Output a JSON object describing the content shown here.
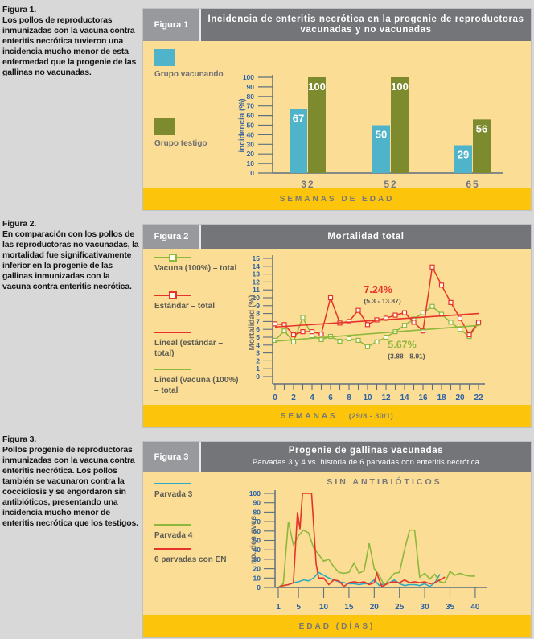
{
  "page": {
    "background": "#d8d8d8",
    "panel_color": "#fbdd95",
    "header_color": "#747579",
    "tab_color": "#98999d",
    "strip_color": "#fcc40a"
  },
  "figures": [
    {
      "sidebar_title": "Figura 1.",
      "sidebar_text": "Los pollos de reproductoras inmunizadas con la vacuna contra enteritis necrótica tuvieron una incidencia mucho menor de esta enfermedad que la progenie de las gallinas no vacunadas.",
      "tab": "Figura 1",
      "title": "Incidencia de enteritis necrótica en la progenie de reproductoras vacunadas y no vacunadas",
      "subtitle": "",
      "footer": "SEMANAS DE EDAD",
      "footer_note": "",
      "legend": [
        {
          "label": "Grupo vacunando",
          "color": "#4fb3c9"
        },
        {
          "label": "Grupo testigo",
          "color": "#7d8a2e"
        }
      ]
    },
    {
      "sidebar_title": "Figura 2.",
      "sidebar_text": "En comparación con los pollos de las reproductoras no vacunadas, la mortalidad fue significativamente inferior en la progenie de las gallinas inmunizadas con la vacuna contra enteritis necrótica.",
      "tab": "Figura 2",
      "title": "Mortalidad total",
      "subtitle": "",
      "footer": "SEMANAS",
      "footer_note": "(29/8 - 30/1)",
      "legend": [
        {
          "label": "Vacuna (100%) – total",
          "color": "#8cb83b",
          "marker": "square"
        },
        {
          "label": "Estándar – total",
          "color": "#e63329",
          "marker": "square"
        },
        {
          "label": "Lineal (estándar – total)",
          "color": "#e63329",
          "marker": "none"
        },
        {
          "label": "Lineal (vacuna (100%) – total",
          "color": "#8cb83b",
          "marker": "none"
        }
      ]
    },
    {
      "sidebar_title": "Figura 3.",
      "sidebar_text": "Pollos progenie de reproductoras inmunizadas con la vacuna contra enteritis necrótica. Los pollos también se vacunaron contra la coccidiosis y se engordaron sin antibióticos, presentando una incidencia mucho menor de enteritis necrótica que los testigos.",
      "tab": "Figura 3",
      "title": "Progenie de gallinas vacunadas",
      "subtitle": "Parvadas 3 y 4 vs. historia de 6 parvadas con enteritis necrótica",
      "footer": "EDAD (DÍAS)",
      "footer_note": "",
      "legend": [
        {
          "label": "Parvada 3",
          "color": "#2da9c6"
        },
        {
          "label": "Parvada 4",
          "color": "#8cb83b"
        },
        {
          "label": "6 parvadas con EN",
          "color": "#e63329"
        }
      ]
    }
  ],
  "chart_data": [
    {
      "type": "bar",
      "title": "Incidencia de enteritis necrótica en la progenie de reproductoras vacunadas y no vacunadas",
      "categories": [
        "32",
        "52",
        "65"
      ],
      "series": [
        {
          "name": "Grupo vacunando",
          "color": "#4fb3c9",
          "values": [
            67,
            50,
            29
          ]
        },
        {
          "name": "Grupo testigo",
          "color": "#7d8a2e",
          "values": [
            100,
            100,
            56
          ]
        }
      ],
      "ylabel": "incidencia (%)",
      "xlabel": "SEMANAS DE EDAD",
      "ylim": [
        0,
        100
      ],
      "ytick_step": 10,
      "grid": false,
      "legend_position": "left",
      "value_labels": true
    },
    {
      "type": "line",
      "title": "Mortalidad total",
      "x": [
        0,
        1,
        2,
        3,
        4,
        5,
        6,
        7,
        8,
        9,
        10,
        11,
        12,
        13,
        14,
        15,
        16,
        17,
        18,
        19,
        20,
        21,
        22
      ],
      "series": [
        {
          "name": "Vacuna (100%) – total",
          "color": "#8cb83b",
          "marker": "square",
          "values": [
            4.6,
            5.8,
            4.4,
            7.5,
            5.2,
            4.7,
            5.1,
            4.5,
            4.8,
            4.6,
            3.8,
            4.4,
            5.0,
            5.7,
            6.5,
            7.3,
            8.1,
            8.9,
            7.9,
            6.9,
            6.0,
            5.1,
            6.8
          ]
        },
        {
          "name": "Estándar – total",
          "color": "#e63329",
          "marker": "square",
          "values": [
            6.7,
            6.6,
            5.3,
            5.7,
            5.7,
            5.4,
            10.0,
            6.8,
            7.0,
            8.4,
            6.6,
            7.2,
            7.4,
            7.8,
            8.1,
            6.9,
            5.8,
            13.9,
            11.6,
            9.4,
            7.4,
            5.3,
            6.9
          ]
        },
        {
          "name": "Lineal (estándar – total)",
          "color": "#e63329",
          "trend": true,
          "points": [
            [
              0,
              6.3
            ],
            [
              22,
              8.0
            ]
          ]
        },
        {
          "name": "Lineal (vacuna (100%) – total",
          "color": "#8cb83b",
          "trend": true,
          "points": [
            [
              0,
              4.5
            ],
            [
              22,
              6.5
            ]
          ]
        }
      ],
      "annotations": [
        {
          "text": "7.24%",
          "sub": "(5.3 - 13.87)",
          "color": "#e63329",
          "x": 9.6,
          "y": 10.6
        },
        {
          "text": "5.67%",
          "sub": "(3.88 - 8.91)",
          "color": "#8cb83b",
          "x": 12.2,
          "y": 3.6
        }
      ],
      "ylabel": "Mortalidad (%)",
      "xlabel": "SEMANAS",
      "xlabel_note": "(29/8 - 30/1)",
      "ylim": [
        0,
        15
      ],
      "ytick_step": 1,
      "xlim": [
        0,
        22
      ],
      "xtick_label_step": 2,
      "legend_position": "left"
    },
    {
      "type": "line",
      "title": "Progenie de gallinas vacunadas",
      "subtitle": "Parvadas 3 y 4 vs. historia de 6 parvadas con enteritis necrótica",
      "inner_title": "SIN ANTIBIÓTICOS",
      "ylabel": "no. des aves",
      "xlabel": "EDAD (DÍAS)",
      "ylim": [
        0,
        100
      ],
      "ytick_step": 10,
      "xlim": [
        1,
        40
      ],
      "xticks": [
        1,
        5,
        10,
        15,
        20,
        25,
        30,
        35,
        40
      ],
      "legend_position": "left",
      "series": [
        {
          "name": "Parvada 3",
          "color": "#2da9c6",
          "x": [
            1,
            2,
            3,
            4,
            5,
            6,
            7,
            8,
            9,
            10,
            11,
            12,
            13,
            14,
            15,
            16,
            17,
            18,
            19,
            20,
            21,
            22,
            23,
            24,
            25,
            26,
            27,
            28,
            29,
            30,
            31,
            32,
            33
          ],
          "values": [
            0,
            2,
            3,
            5,
            6,
            8,
            7,
            10,
            16,
            13,
            10,
            8,
            6,
            5,
            4,
            4,
            3,
            4,
            4,
            8,
            2,
            4,
            5,
            8,
            4,
            2,
            3,
            3,
            2,
            4,
            1,
            5,
            14
          ]
        },
        {
          "name": "Parvada 4",
          "color": "#8cb83b",
          "x": [
            1,
            2,
            3,
            4,
            5,
            6,
            7,
            8,
            9,
            10,
            11,
            12,
            13,
            14,
            15,
            16,
            17,
            18,
            19,
            20,
            21,
            22,
            23,
            24,
            25,
            26,
            27,
            28,
            29,
            30,
            31,
            32,
            33,
            34,
            35,
            36,
            37,
            38,
            39,
            40
          ],
          "values": [
            0,
            4,
            70,
            45,
            55,
            61,
            58,
            42,
            35,
            28,
            30,
            22,
            16,
            15,
            16,
            26,
            15,
            18,
            47,
            20,
            13,
            2,
            9,
            15,
            16,
            40,
            61,
            61,
            11,
            15,
            9,
            14,
            6,
            5,
            17,
            13,
            15,
            13,
            12,
            12
          ]
        },
        {
          "name": "6 parvadas con EN",
          "color": "#e63329",
          "x": [
            1,
            2,
            3,
            4,
            4.8,
            5.3,
            5.8,
            7.6,
            8.5,
            9,
            10,
            11,
            12,
            13,
            14,
            15,
            16,
            17,
            18,
            19,
            20,
            20.5,
            21.5,
            23,
            24,
            25,
            26,
            27,
            28,
            29,
            30,
            31,
            32,
            33,
            34
          ],
          "values": [
            0,
            2,
            3,
            5,
            80,
            62,
            100,
            100,
            25,
            10,
            10,
            3,
            8,
            7,
            1,
            5,
            6,
            5,
            6,
            3,
            5,
            15,
            1,
            5,
            6,
            5,
            8,
            5,
            6,
            5,
            6,
            4,
            5,
            8,
            11
          ]
        }
      ]
    }
  ]
}
